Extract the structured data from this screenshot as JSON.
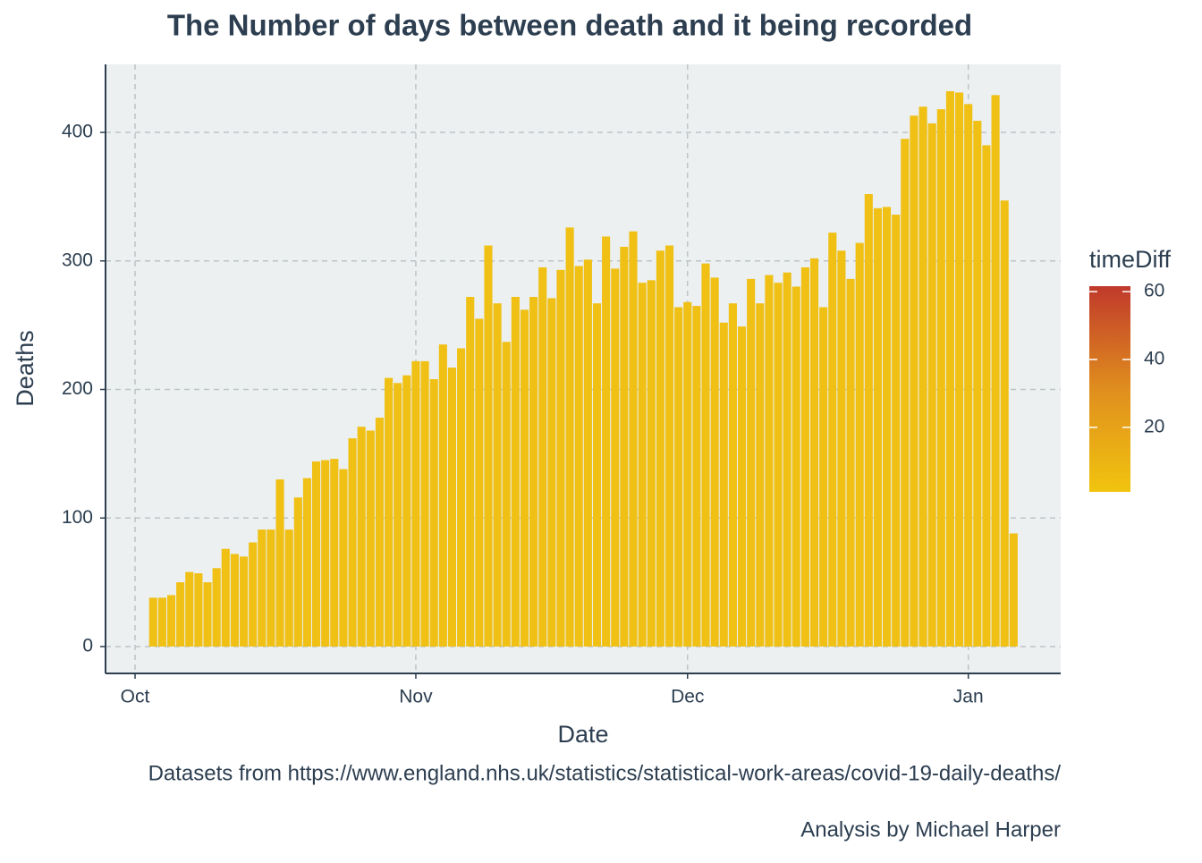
{
  "chart_data": {
    "type": "bar",
    "title": "The Number of days between death and it being recorded",
    "x_label": "Date",
    "y_label": "Deaths",
    "caption": [
      "Datasets from https://www.england.nhs.uk/statistics/statistical-work-areas/covid-19-daily-deaths/",
      "Analysis by Michael Harper"
    ],
    "x": [
      2,
      3,
      4,
      5,
      6,
      7,
      8,
      9,
      10,
      11,
      12,
      13,
      14,
      15,
      16,
      17,
      18,
      19,
      20,
      21,
      22,
      23,
      24,
      25,
      26,
      27,
      28,
      29,
      30,
      31,
      32,
      33,
      34,
      35,
      36,
      37,
      38,
      39,
      40,
      41,
      42,
      43,
      44,
      45,
      46,
      47,
      48,
      49,
      50,
      51,
      52,
      53,
      54,
      55,
      56,
      57,
      58,
      59,
      60,
      61,
      62,
      63,
      64,
      65,
      66,
      67,
      68,
      69,
      70,
      71,
      72,
      73,
      74,
      75,
      76,
      77,
      78,
      79,
      80,
      81,
      82,
      83,
      84,
      85,
      86,
      87,
      88,
      89,
      90,
      91,
      92,
      93,
      94,
      95,
      96,
      97
    ],
    "values": [
      38,
      38,
      40,
      50,
      58,
      57,
      50,
      61,
      76,
      72,
      70,
      81,
      91,
      91,
      130,
      91,
      116,
      131,
      144,
      145,
      146,
      138,
      162,
      171,
      168,
      178,
      209,
      205,
      211,
      222,
      222,
      208,
      235,
      217,
      232,
      272,
      255,
      312,
      267,
      237,
      272,
      262,
      272,
      295,
      271,
      293,
      326,
      296,
      301,
      267,
      319,
      294,
      311,
      323,
      283,
      285,
      308,
      312,
      264,
      268,
      265,
      298,
      287,
      252,
      267,
      249,
      286,
      267,
      289,
      283,
      291,
      280,
      295,
      302,
      264,
      322,
      308,
      286,
      314,
      352,
      341,
      342,
      336,
      395,
      413,
      420,
      407,
      418,
      432,
      431,
      422,
      409,
      390,
      429,
      347,
      88
    ],
    "color": "#F0C015",
    "xlim": [
      -3.26,
      102.2
    ],
    "xticks": [
      {
        "value": 0,
        "label": "Oct"
      },
      {
        "value": 31,
        "label": "Nov"
      },
      {
        "value": 61,
        "label": "Dec"
      },
      {
        "value": 92,
        "label": "Jan"
      }
    ],
    "ylim": [
      -20.9,
      452.9
    ],
    "yticks": [
      0,
      100,
      200,
      300,
      400
    ],
    "grid": true,
    "legend": {
      "title": "timeDiff",
      "colors": [
        "#F1C40F",
        "#E08E1E",
        "#C0392B"
      ],
      "lim": [
        1,
        61.6
      ],
      "ticks": [
        20,
        40,
        60
      ]
    }
  }
}
